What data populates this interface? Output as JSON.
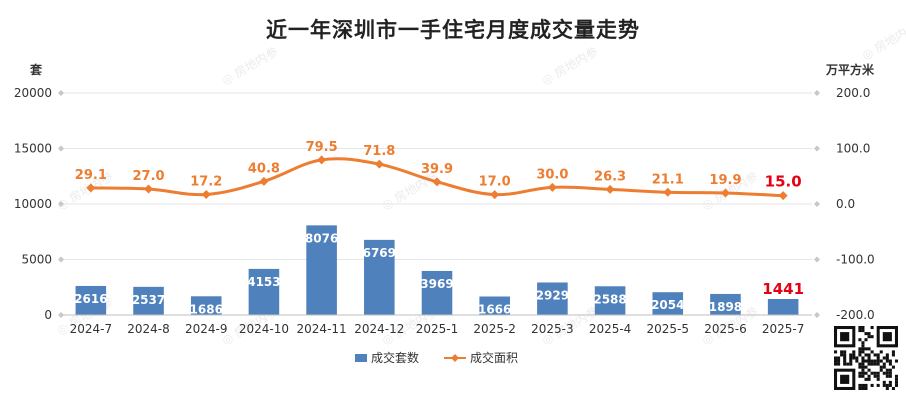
{
  "page": {
    "title": "近一年深圳市一手住宅月度成交量走势"
  },
  "watermark": "房地内参",
  "colors": {
    "bar": "#4f81bd",
    "line": "#ed7d31",
    "highlight": "#e60012",
    "grid": "#e6e6e6"
  },
  "chart_data": {
    "type": "bar",
    "title": "近一年深圳市一手住宅月度成交量走势",
    "categories": [
      "2024-7",
      "2024-8",
      "2024-9",
      "2024-10",
      "2024-11",
      "2024-12",
      "2025-1",
      "2025-2",
      "2025-3",
      "2025-4",
      "2025-5",
      "2025-6",
      "2025-7"
    ],
    "left_axis": {
      "unit": "套",
      "ylim": [
        0,
        20000
      ],
      "ticks": [
        0,
        5000,
        10000,
        15000,
        20000
      ]
    },
    "right_axis": {
      "unit": "万平方米",
      "ylim": [
        -200,
        200
      ],
      "ticks": [
        "-200.0",
        "-100.0",
        "0.0",
        "100.0",
        "200.0"
      ]
    },
    "series": [
      {
        "name": "成交套数",
        "type": "bar",
        "axis": "left",
        "values": [
          2616,
          2537,
          1686,
          4153,
          8076,
          6769,
          3969,
          1666,
          2929,
          2588,
          2054,
          1898,
          1441
        ]
      },
      {
        "name": "成交面积",
        "type": "line",
        "axis": "right",
        "values": [
          29.1,
          27.0,
          17.2,
          40.8,
          79.5,
          71.8,
          39.9,
          17.0,
          30.0,
          26.3,
          21.1,
          19.9,
          15.0
        ],
        "labels": [
          "29.1",
          "27.0",
          "17.2",
          "40.8",
          "79.5",
          "71.8",
          "39.9",
          "17.0",
          "30.0",
          "26.3",
          "21.1",
          "19.9",
          "15.0"
        ]
      }
    ],
    "highlight_last": true,
    "grid": true,
    "legend_position": "bottom"
  }
}
